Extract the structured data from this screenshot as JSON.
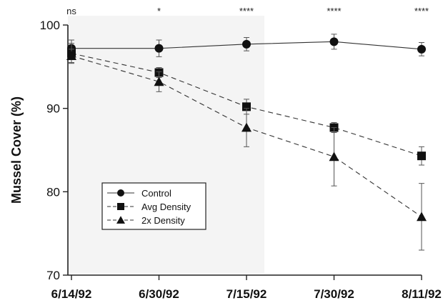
{
  "chart_data": {
    "type": "line",
    "title": "",
    "xlabel": "",
    "ylabel": "Mussel Cover (%)",
    "categories": [
      "6/14/92",
      "6/30/92",
      "7/15/92",
      "7/30/92",
      "8/11/92"
    ],
    "y_ticks": [
      70,
      80,
      90,
      100
    ],
    "ylim": [
      70,
      100
    ],
    "grid": false,
    "legend_position": "lower-left",
    "significance": [
      "ns",
      "*",
      "****",
      "****",
      "****"
    ],
    "series": [
      {
        "name": "Control",
        "marker": "circle",
        "line_style": "solid",
        "values": [
          97.2,
          97.2,
          97.7,
          98.0,
          97.1
        ],
        "errors": [
          1.0,
          1.0,
          0.8,
          0.9,
          0.8
        ]
      },
      {
        "name": "Avg  Density",
        "marker": "square",
        "line_style": "dashed",
        "values": [
          96.6,
          94.3,
          90.2,
          87.7,
          84.3
        ],
        "errors": [
          1.2,
          0.6,
          0.9,
          0.6,
          1.1
        ]
      },
      {
        "name": "2x Density",
        "marker": "triangle",
        "line_style": "dashed",
        "values": [
          96.3,
          93.2,
          87.7,
          84.2,
          77.0
        ],
        "errors": [
          0.8,
          1.2,
          2.3,
          3.5,
          4.0
        ]
      }
    ]
  }
}
